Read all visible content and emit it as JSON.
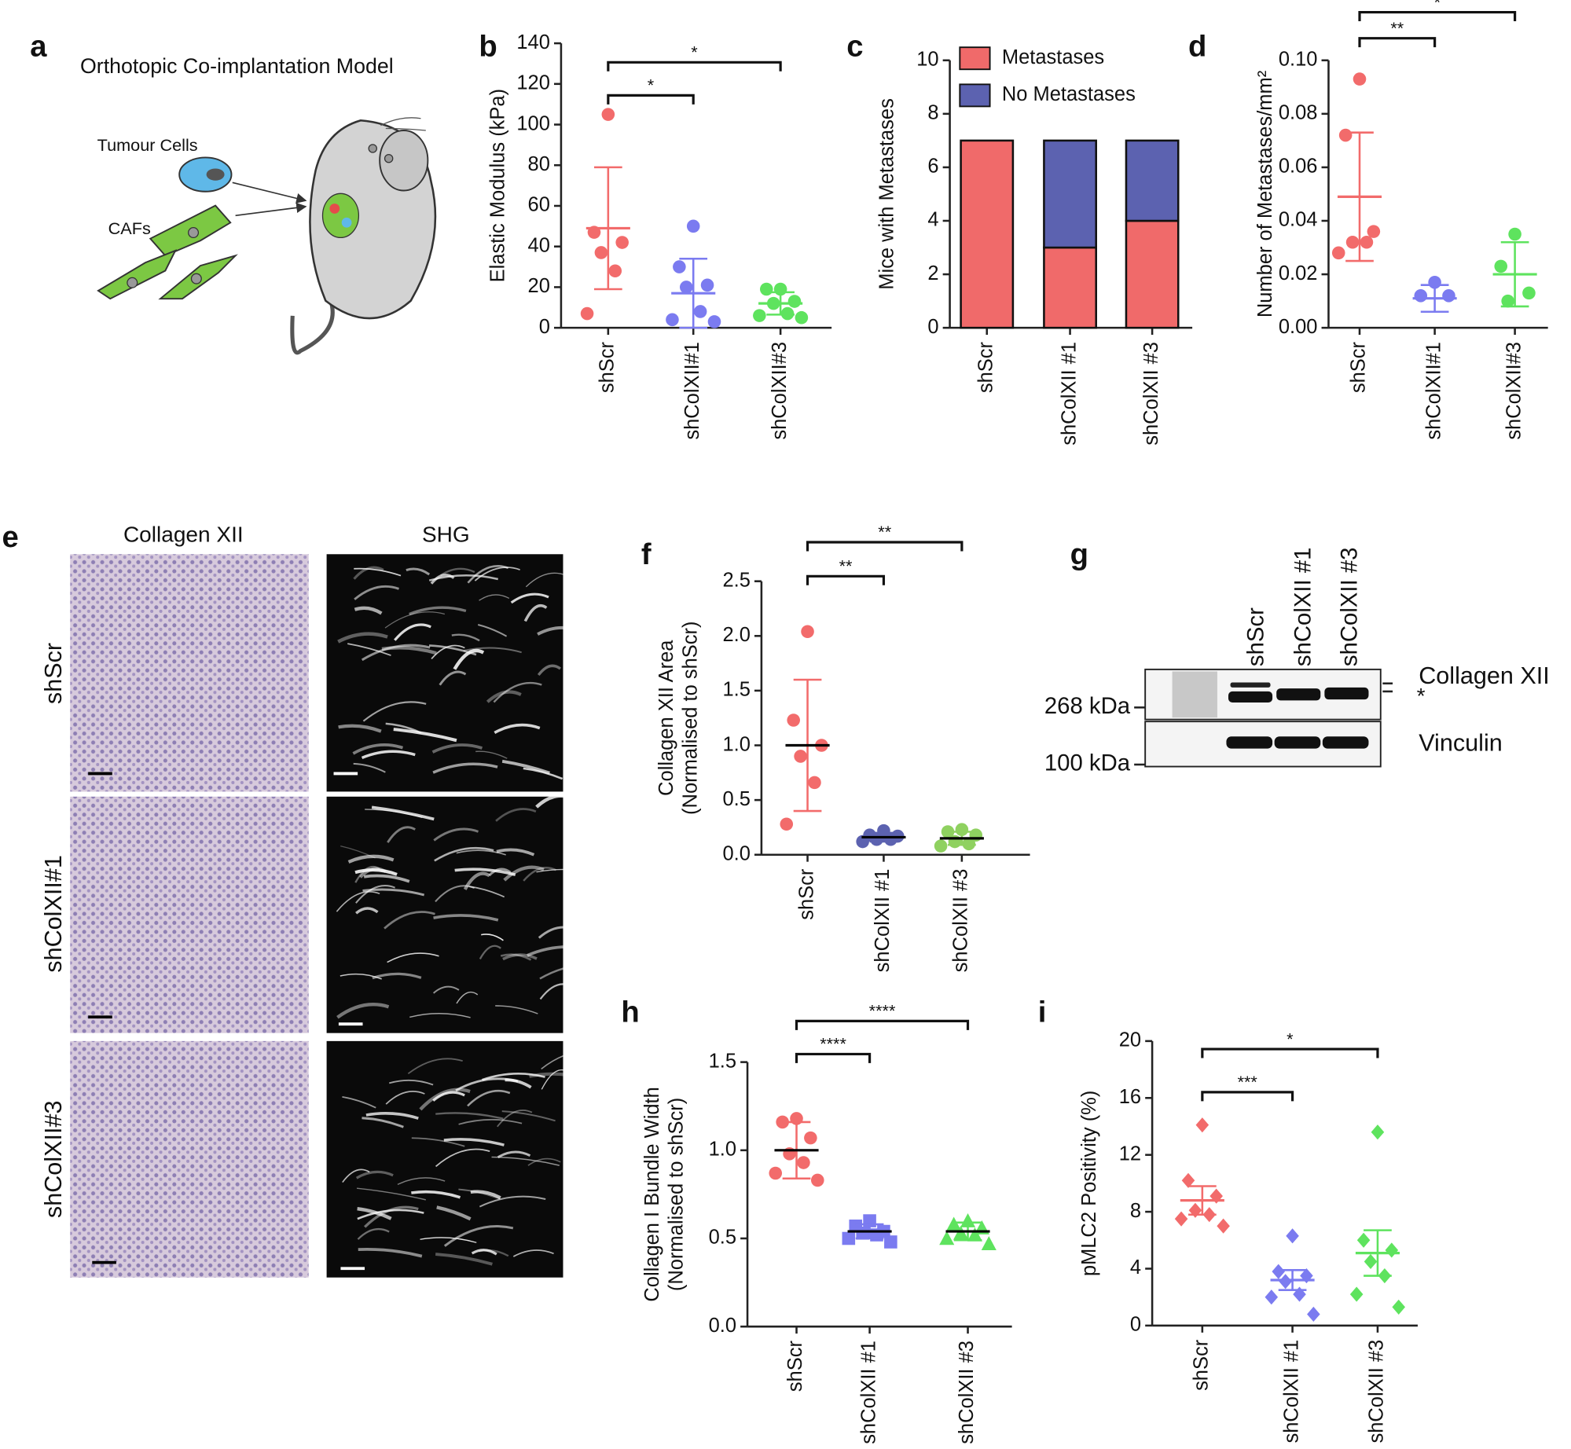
{
  "panel_labels": [
    "a",
    "b",
    "c",
    "d",
    "e",
    "f",
    "g",
    "h",
    "i"
  ],
  "diagram": {
    "title": "Orthotopic Co-implantation Model",
    "labels": [
      "Tumour Cells",
      "CAFs"
    ]
  },
  "image_panel": {
    "columns": [
      "Collagen XII",
      "SHG"
    ],
    "rows": [
      "shScr",
      "shColXII#1",
      "shColXII#3"
    ]
  },
  "blot": {
    "lanes": [
      "shScr",
      "shColXII #1",
      "shColXII #3"
    ],
    "targets": [
      "Collagen XII",
      "*",
      "Vinculin"
    ],
    "markers": [
      "268 kDa",
      "100 kDa"
    ]
  },
  "chart_data": [
    {
      "type": "dotplot",
      "ylabel": [
        "Elastic Modulus (kPa)"
      ],
      "categories": [
        "shScr",
        "shColXII#1",
        "shColXII#3"
      ],
      "ylim": [
        0,
        140
      ],
      "yticks": [
        0,
        20,
        40,
        60,
        80,
        100,
        120,
        140
      ],
      "groups": [
        {
          "color": "#f26b6b",
          "marker": "circle",
          "points": [
            105,
            47,
            42,
            37,
            28,
            7
          ],
          "mean": 49,
          "error": 30
        },
        {
          "color": "#7b7bf0",
          "marker": "circle",
          "points": [
            50,
            30,
            21,
            20,
            8,
            4,
            3
          ],
          "mean": 17,
          "error": 17
        },
        {
          "color": "#5ee35e",
          "marker": "circle",
          "points": [
            19,
            19,
            13,
            12,
            7,
            6,
            5
          ],
          "mean": 12,
          "error": 5.5
        }
      ],
      "significance": [
        {
          "label": "*"
        },
        {
          "label": "*"
        }
      ]
    },
    {
      "type": "stacked_bar",
      "ylabel": [
        "Mice with Metastases"
      ],
      "categories": [
        "shScr",
        "shColXII #1",
        "shColXII #3"
      ],
      "ylim": [
        0,
        10
      ],
      "yticks": [
        0,
        2,
        4,
        6,
        8,
        10
      ],
      "legend": "top-left",
      "series": [
        {
          "name": "Metastases",
          "color": "#f06a6a",
          "values": [
            7,
            3,
            4
          ]
        },
        {
          "name": "No Metastases",
          "color": "#5c62b0",
          "values": [
            0,
            4,
            3
          ]
        }
      ]
    },
    {
      "type": "dotplot",
      "ylabel": [
        "Number of Metastases/mm²"
      ],
      "categories": [
        "shScr",
        "shColXII#1",
        "shColXII#3"
      ],
      "ylim": [
        0,
        0.1
      ],
      "yticks": [
        {
          "value": 0,
          "label": "0.00"
        },
        {
          "value": 0.02,
          "label": "0.02"
        },
        {
          "value": 0.04,
          "label": "0.04"
        },
        {
          "value": 0.06,
          "label": "0.06"
        },
        {
          "value": 0.08,
          "label": "0.08"
        },
        {
          "value": 0.1,
          "label": "0.10"
        }
      ],
      "groups": [
        {
          "color": "#f26b6b",
          "marker": "circle",
          "points": [
            0.093,
            0.072,
            0.036,
            0.032,
            0.032,
            0.028
          ],
          "mean": 0.049,
          "error": 0.024
        },
        {
          "color": "#7b7bf0",
          "marker": "circle",
          "points": [
            0.017,
            0.012,
            0.012
          ],
          "mean": 0.011,
          "error": 0.005
        },
        {
          "color": "#5ee35e",
          "marker": "circle",
          "points": [
            0.035,
            0.023,
            0.013,
            0.01
          ],
          "mean": 0.02,
          "error": 0.012
        }
      ],
      "significance": [
        {
          "label": "**"
        },
        {
          "label": "*"
        }
      ]
    },
    {
      "type": "dotplot",
      "ylabel": [
        "Collagen XII Area",
        "(Normalised to shScr)"
      ],
      "categories": [
        "shScr",
        "shColXII #1",
        "shColXII #3"
      ],
      "ylim": [
        0,
        2.5
      ],
      "yticks": [
        {
          "value": 0,
          "label": "0.0"
        },
        0.5,
        {
          "value": 1,
          "label": "1.0"
        },
        1.5,
        {
          "value": 2,
          "label": "2.0"
        },
        2.5
      ],
      "mean_line_color": "#000000",
      "groups": [
        {
          "color": "#f26b6b",
          "marker": "circle",
          "points": [
            2.04,
            1.23,
            1.0,
            0.9,
            0.66,
            0.28
          ],
          "mean": 1.0,
          "error": 0.6
        },
        {
          "color": "#5c62b0",
          "marker": "circle",
          "points": [
            0.22,
            0.18,
            0.17,
            0.14,
            0.14,
            0.12
          ],
          "mean": 0.16,
          "error": 0.04
        },
        {
          "color": "#8fd160",
          "marker": "circle",
          "points": [
            0.23,
            0.21,
            0.18,
            0.12,
            0.1,
            0.08
          ],
          "mean": 0.15,
          "error": 0.06
        }
      ],
      "significance": [
        {
          "label": "**"
        },
        {
          "label": "**"
        }
      ]
    },
    {
      "type": "dotplot",
      "ylabel": [
        "Collagen I Bundle  Width",
        "(Normalised to shScr)"
      ],
      "categories": [
        "shScr",
        "shColXII #1",
        "shColXII #3"
      ],
      "ylim": [
        0,
        1.5
      ],
      "yticks": [
        {
          "value": 0,
          "label": "0.0"
        },
        0.5,
        {
          "value": 1,
          "label": "1.0"
        },
        1.5
      ],
      "mean_line_color": "#000000",
      "groups": [
        {
          "color": "#f26b6b",
          "marker": "circle",
          "points": [
            1.18,
            1.16,
            1.07,
            0.98,
            0.93,
            0.87,
            0.83
          ],
          "mean": 1.0,
          "error": 0.16
        },
        {
          "color": "#7b7bf0",
          "marker": "square",
          "points": [
            0.6,
            0.57,
            0.54,
            0.53,
            0.52,
            0.5,
            0.48
          ],
          "mean": 0.54,
          "error": 0.04
        },
        {
          "color": "#5ee35e",
          "marker": "triangle",
          "points": [
            0.6,
            0.58,
            0.56,
            0.53,
            0.52,
            0.5,
            0.47
          ],
          "mean": 0.54,
          "error": 0.05
        }
      ],
      "significance": [
        {
          "label": "****"
        },
        {
          "label": "****"
        }
      ]
    },
    {
      "type": "dotplot",
      "ylabel": [
        "pMLC2 Positivity (%)"
      ],
      "categories": [
        "shScr",
        "shColXII #1",
        "shColXII #3"
      ],
      "ylim": [
        0,
        20
      ],
      "yticks": [
        0,
        4,
        8,
        12,
        16,
        20
      ],
      "groups": [
        {
          "color": "#f26b6b",
          "marker": "diamond",
          "points": [
            14.1,
            10.2,
            9.1,
            8.1,
            7.8,
            7.5,
            7.0
          ],
          "mean": 8.8,
          "error": 1.0
        },
        {
          "color": "#7b7bf0",
          "marker": "diamond",
          "points": [
            6.3,
            3.8,
            3.5,
            3.1,
            2.2,
            2.0,
            0.8
          ],
          "mean": 3.2,
          "error": 0.7
        },
        {
          "color": "#5ee35e",
          "marker": "diamond",
          "points": [
            13.6,
            6.0,
            5.3,
            4.5,
            3.5,
            2.2,
            1.3
          ],
          "mean": 5.1,
          "error": 1.6
        }
      ],
      "significance": [
        {
          "label": "***"
        },
        {
          "label": "*"
        }
      ]
    }
  ]
}
